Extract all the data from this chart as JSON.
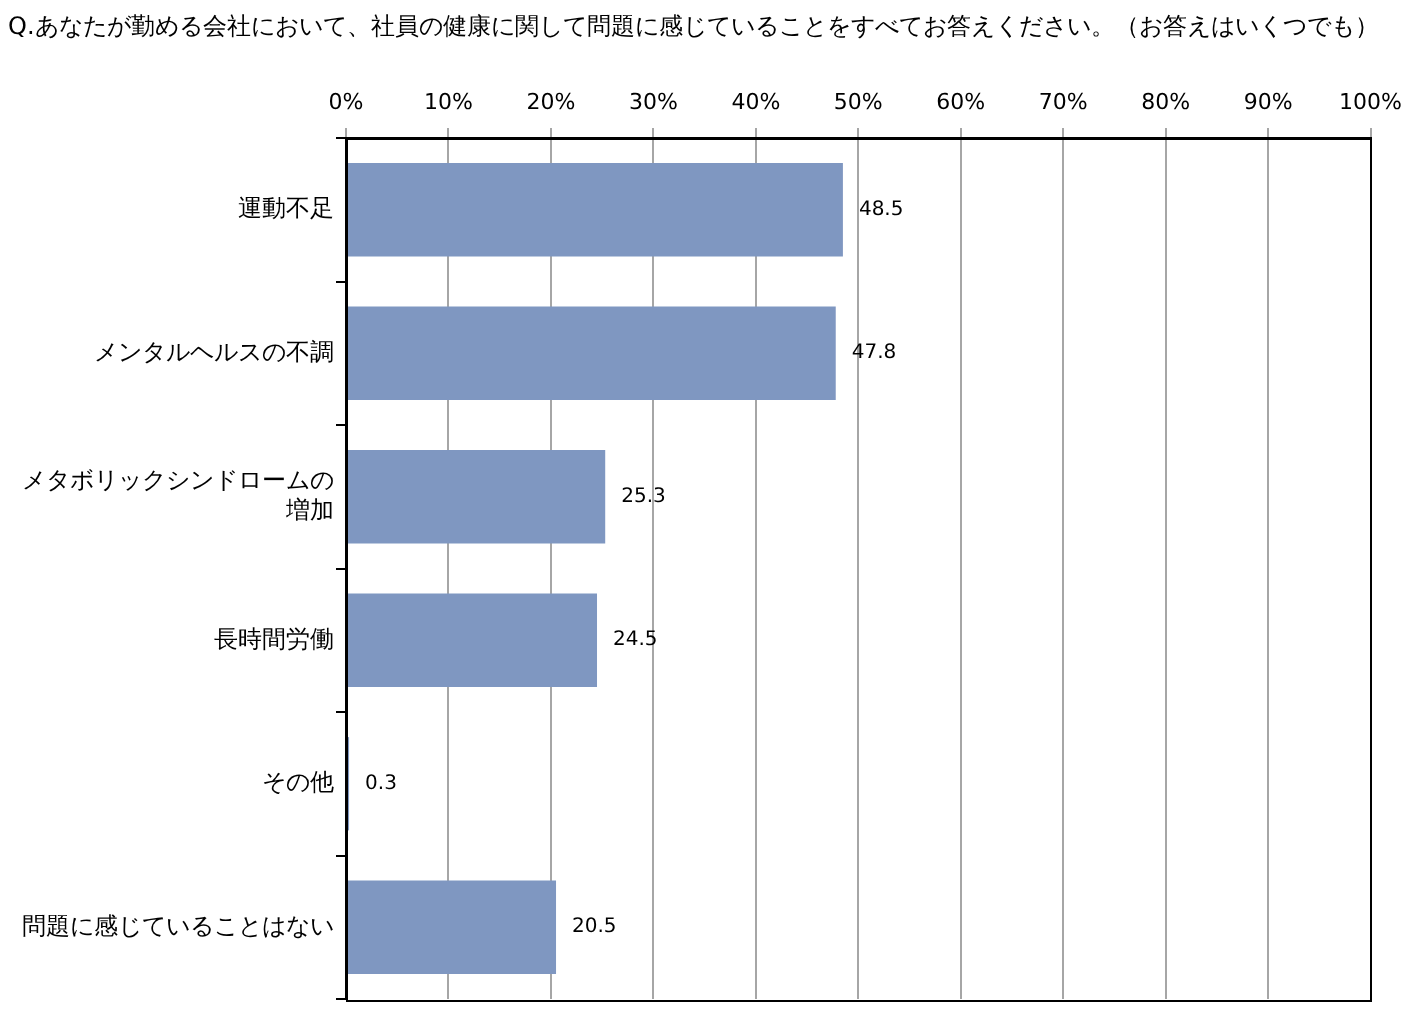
{
  "chart_data": {
    "type": "bar",
    "orientation": "horizontal",
    "title": "Q.あなたが勤める会社において、社員の健康に関して問題に感じていることをすべてお答えください。（お答えはいくつでも）",
    "categories": [
      "運動不足",
      "メンタルヘルスの不調",
      "メタボリックシンドロームの増加",
      "長時間労働",
      "その他",
      "問題に感じていることはない"
    ],
    "values": [
      48.5,
      47.8,
      25.3,
      24.5,
      0.3,
      20.5
    ],
    "color": "#7f97c1",
    "xlim": [
      0,
      100
    ],
    "xticks": [
      {
        "value": 0,
        "label": "0%"
      },
      {
        "value": 10,
        "label": "10%"
      },
      {
        "value": 20,
        "label": "20%"
      },
      {
        "value": 30,
        "label": "30%"
      },
      {
        "value": 40,
        "label": "40%"
      },
      {
        "value": 50,
        "label": "50%"
      },
      {
        "value": 60,
        "label": "60%"
      },
      {
        "value": 70,
        "label": "70%"
      },
      {
        "value": 80,
        "label": "80%"
      },
      {
        "value": 90,
        "label": "90%"
      },
      {
        "value": 100,
        "label": "100%"
      }
    ],
    "grid": "x",
    "data_labels": true,
    "legend": false
  }
}
